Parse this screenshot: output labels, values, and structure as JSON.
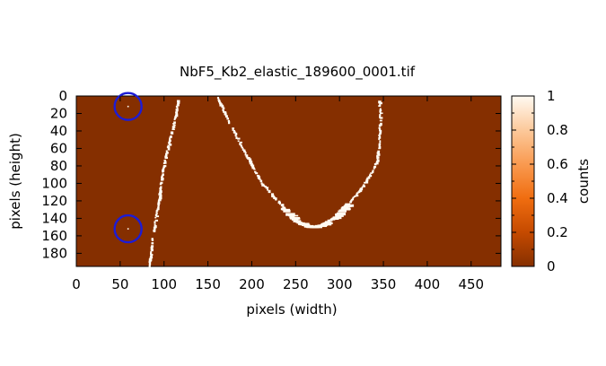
{
  "chart_data": {
    "type": "heatmap",
    "title": "NbF5_Kb2_elastic_189600_0001.tif",
    "xlabel": "pixels (width)",
    "ylabel": "pixels (height)",
    "colorbar_label": "counts",
    "xlim": [
      0,
      484
    ],
    "ylim": [
      0,
      195
    ],
    "y_axis_inverted": true,
    "x_ticks": [
      0,
      50,
      100,
      150,
      200,
      250,
      300,
      350,
      400,
      450
    ],
    "y_ticks": [
      0,
      20,
      40,
      60,
      80,
      100,
      120,
      140,
      160,
      180
    ],
    "colorbar_range": [
      0,
      1
    ],
    "colorbar_ticks": [
      "0",
      "0.2",
      "0.4",
      "0.6",
      "0.8",
      "1"
    ],
    "colormap": [
      "#852f00",
      "#c54a00",
      "#f06d10",
      "#f99a50",
      "#fcc99b",
      "#fffaf2"
    ],
    "background_value": 0,
    "features": {
      "left_line": [
        [
          84,
          195
        ],
        [
          88,
          160
        ],
        [
          94,
          125
        ],
        [
          100,
          80
        ],
        [
          105,
          60
        ],
        [
          110,
          40
        ],
        [
          114,
          22
        ],
        [
          117,
          4
        ]
      ],
      "curve": [
        [
          162,
          2
        ],
        [
          170,
          20
        ],
        [
          180,
          40
        ],
        [
          193,
          65
        ],
        [
          212,
          100
        ],
        [
          232,
          122
        ],
        [
          252,
          143
        ],
        [
          268,
          150
        ],
        [
          282,
          148
        ],
        [
          296,
          140
        ],
        [
          310,
          125
        ],
        [
          322,
          110
        ],
        [
          336,
          90
        ],
        [
          343,
          75
        ],
        [
          346,
          55
        ],
        [
          347,
          25
        ],
        [
          346,
          3
        ]
      ],
      "curve_thick_segment_x": [
        238,
        312
      ]
    },
    "markers": [
      {
        "x": 59,
        "y": 12,
        "color": "#1c1cd6"
      },
      {
        "x": 59,
        "y": 152,
        "color": "#1c1cd6"
      }
    ]
  }
}
